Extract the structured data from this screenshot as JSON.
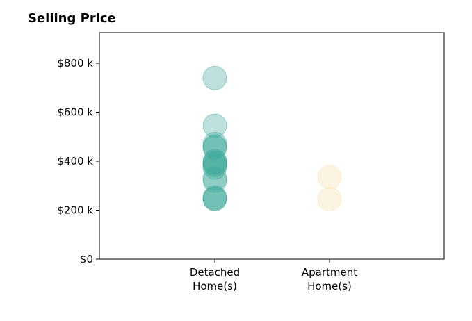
{
  "chart_data": {
    "type": "scatter",
    "title": "Selling Price",
    "xlabel": "",
    "ylabel": "",
    "categories": [
      "Detached\nHome(s)",
      "Apartment\nHome(s)"
    ],
    "ylim": [
      0,
      925
    ],
    "y_ticks": [
      0,
      200,
      400,
      600,
      800
    ],
    "y_tick_labels": [
      "$0",
      "$200 k",
      "$400 k",
      "$600 k",
      "$800 k"
    ],
    "grid": false,
    "series": [
      {
        "category_index": 0,
        "color": "#3fa89c",
        "values": [
          740,
          545,
          470,
          460,
          455,
          400,
          395,
          390,
          385,
          375,
          330,
          320,
          252,
          248,
          245
        ]
      },
      {
        "category_index": 1,
        "color": "#f3dfaa",
        "values": [
          335,
          245
        ]
      }
    ]
  }
}
